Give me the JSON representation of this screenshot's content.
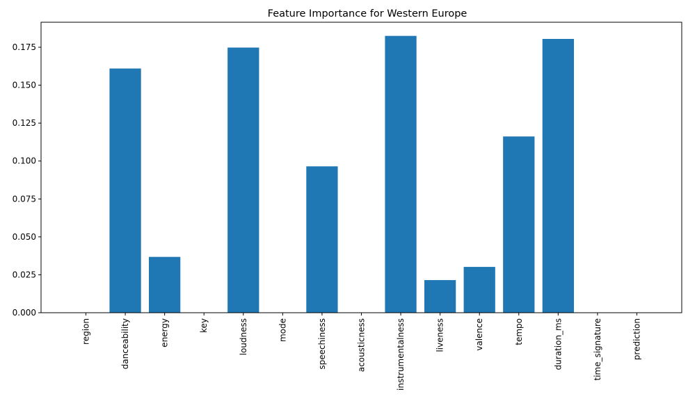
{
  "chart_data": {
    "type": "bar",
    "title": "Feature Importance for Western Europe",
    "xlabel": "",
    "ylabel": "",
    "categories": [
      "region",
      "danceability",
      "energy",
      "key",
      "loudness",
      "mode",
      "speechiness",
      "acousticness",
      "instrumentalness",
      "liveness",
      "valence",
      "tempo",
      "duration_ms",
      "time_signature",
      "prediction"
    ],
    "values": [
      0.0,
      0.161,
      0.0368,
      0.0,
      0.1748,
      0.0,
      0.0965,
      0.0,
      0.1825,
      0.0215,
      0.0302,
      0.1162,
      0.1805,
      0.0,
      0.0
    ],
    "ylim": [
      0,
      0.1915
    ],
    "yticks": [
      0.0,
      0.025,
      0.05,
      0.075,
      0.1,
      0.125,
      0.15,
      0.175
    ],
    "ytick_labels": [
      "0.000",
      "0.025",
      "0.050",
      "0.075",
      "0.100",
      "0.125",
      "0.150",
      "0.175"
    ],
    "grid": false,
    "bar_color": "#1f77b4"
  }
}
